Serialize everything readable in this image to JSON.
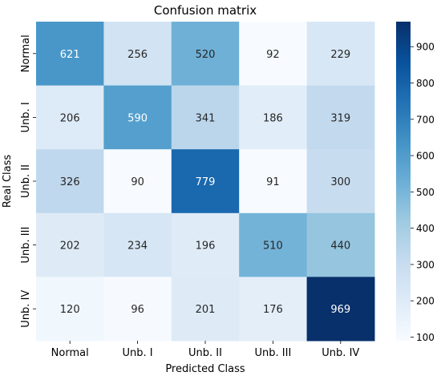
{
  "chart_data": {
    "type": "heatmap",
    "title": "Confusion matrix",
    "xlabel": "Predicted Class",
    "ylabel": "Real Class",
    "x_categories": [
      "Normal",
      "Unb. I",
      "Unb. II",
      "Unb. III",
      "Unb. IV"
    ],
    "y_categories": [
      "Normal",
      "Unb. I",
      "Unb. II",
      "Unb. III",
      "Unb. IV"
    ],
    "values": [
      [
        621,
        256,
        520,
        92,
        229
      ],
      [
        206,
        590,
        341,
        186,
        319
      ],
      [
        326,
        90,
        779,
        91,
        300
      ],
      [
        202,
        234,
        196,
        510,
        440
      ],
      [
        120,
        96,
        201,
        176,
        969
      ]
    ],
    "colorbar": {
      "range": [
        90,
        969
      ],
      "ticks": [
        100,
        200,
        300,
        400,
        500,
        600,
        700,
        800,
        900
      ],
      "colormap": "Blues"
    },
    "grid": false
  }
}
